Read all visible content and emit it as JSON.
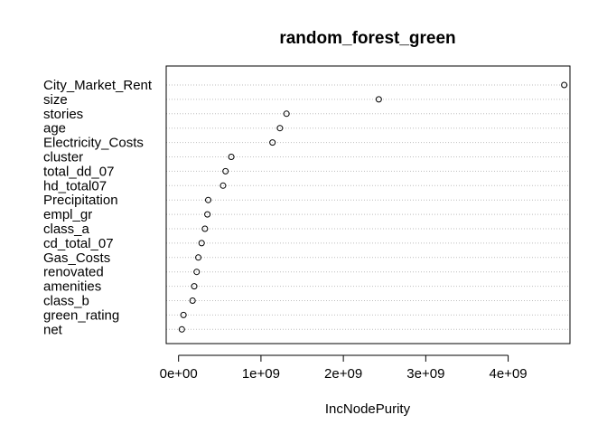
{
  "chart_data": {
    "type": "scatter",
    "title": "random_forest_green",
    "xlabel": "IncNodePurity",
    "ylabel": "",
    "xlim": [
      -150000000,
      4750000000
    ],
    "xticks": [
      0,
      1000000000,
      2000000000,
      3000000000,
      4000000000
    ],
    "xtick_labels": [
      "0e+00",
      "1e+09",
      "2e+09",
      "3e+09",
      "4e+09"
    ],
    "grid": "horizontal dotted",
    "categories": [
      "City_Market_Rent",
      "size",
      "stories",
      "age",
      "Electricity_Costs",
      "cluster",
      "total_dd_07",
      "hd_total07",
      "Precipitation",
      "empl_gr",
      "class_a",
      "cd_total_07",
      "Gas_Costs",
      "renovated",
      "amenities",
      "class_b",
      "green_rating",
      "net"
    ],
    "values": [
      4680000000,
      2430000000,
      1310000000,
      1230000000,
      1140000000,
      640000000,
      570000000,
      540000000,
      360000000,
      350000000,
      320000000,
      280000000,
      240000000,
      220000000,
      190000000,
      170000000,
      60000000,
      40000000
    ]
  }
}
